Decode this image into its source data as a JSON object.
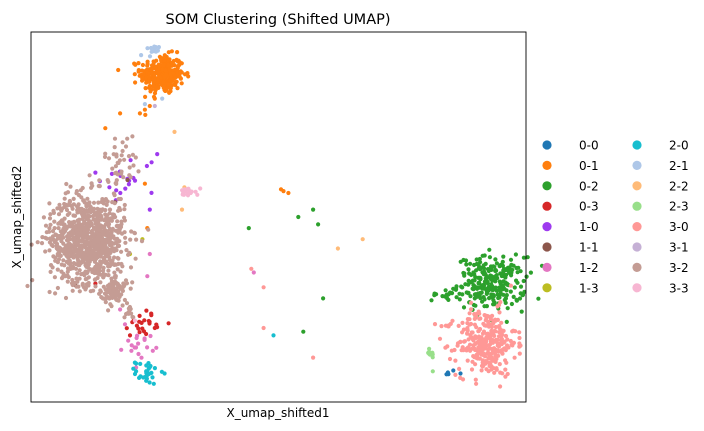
{
  "chart_data": {
    "type": "scatter",
    "title": "SOM Clustering (Shifted UMAP)",
    "xlabel": "X_umap_shifted1",
    "ylabel": "X_umap_shifted2",
    "xlim": [
      0,
      100
    ],
    "ylim": [
      0,
      100
    ],
    "grid": false,
    "ticks_shown": false,
    "legend_position": "right, outside plot, two columns",
    "series": [
      {
        "name": "0-0",
        "color": "#1f77b4",
        "clusters": [
          {
            "cx": 84,
            "cy": 8,
            "sx": 1.0,
            "sy": 0.4,
            "n": 6
          }
        ]
      },
      {
        "name": "0-1",
        "color": "#ff7f0e",
        "clusters": [
          {
            "cx": 26.5,
            "cy": 88.5,
            "sx": 2.2,
            "sy": 2.6,
            "n": 300
          }
        ],
        "points": [
          [
            25,
            82
          ],
          [
            24,
            80
          ],
          [
            22,
            78
          ],
          [
            23,
            79
          ],
          [
            18,
            78
          ],
          [
            15,
            74
          ],
          [
            51,
            57
          ],
          [
            52,
            56.5
          ],
          [
            50.5,
            57.5
          ],
          [
            23,
            59
          ],
          [
            23.5,
            47
          ]
        ]
      },
      {
        "name": "0-2",
        "color": "#2ca02c",
        "clusters": [
          {
            "cx": 93,
            "cy": 32,
            "sx": 3.4,
            "sy": 3.6,
            "n": 260
          },
          {
            "cx": 83,
            "cy": 29,
            "sx": 1.0,
            "sy": 0.8,
            "n": 14
          }
        ],
        "points": [
          [
            44,
            47
          ],
          [
            54,
            50
          ],
          [
            57,
            52
          ],
          [
            58,
            48
          ],
          [
            59,
            28
          ],
          [
            55,
            19
          ]
        ]
      },
      {
        "name": "0-3",
        "color": "#d62728",
        "clusters": [
          {
            "cx": 23,
            "cy": 21.5,
            "sx": 1.6,
            "sy": 1.6,
            "n": 22
          }
        ],
        "points": [
          [
            11,
            35
          ],
          [
            13,
            32
          ],
          [
            20,
            24
          ],
          [
            25,
            20
          ],
          [
            20,
            18
          ]
        ]
      },
      {
        "name": "1-0",
        "color": "#9e3aef",
        "clusters": [
          {
            "cx": 20,
            "cy": 60,
            "sx": 3.0,
            "sy": 3.5,
            "n": 18
          }
        ],
        "points": [
          [
            25.5,
            67
          ],
          [
            13,
            62
          ],
          [
            24,
            52
          ]
        ]
      },
      {
        "name": "1-1",
        "color": "#8c564b",
        "points": [
          [
            9,
            31.5
          ],
          [
            19.5,
            60
          ],
          [
            17,
            54
          ]
        ]
      },
      {
        "name": "1-2",
        "color": "#e377c2",
        "clusters": [
          {
            "cx": 22,
            "cy": 15.5,
            "sx": 1.5,
            "sy": 1.6,
            "n": 18
          }
        ],
        "points": [
          [
            24,
            40
          ],
          [
            23.5,
            34
          ],
          [
            18,
            25
          ],
          [
            19,
            21
          ],
          [
            45,
            35
          ]
        ]
      },
      {
        "name": "1-3",
        "color": "#bcbd22",
        "points": [
          [
            22.5,
            44
          ],
          [
            20,
            40
          ]
        ]
      },
      {
        "name": "2-0",
        "color": "#17becf",
        "clusters": [
          {
            "cx": 23.5,
            "cy": 8,
            "sx": 1.2,
            "sy": 1.6,
            "n": 30
          }
        ],
        "points": [
          [
            49,
            18
          ]
        ]
      },
      {
        "name": "2-1",
        "color": "#aec7e8",
        "clusters": [
          {
            "cx": 24,
            "cy": 94.5,
            "sx": 0.9,
            "sy": 0.9,
            "n": 12
          }
        ],
        "points": [
          [
            23,
            80.5
          ],
          [
            26.5,
            82
          ]
        ]
      },
      {
        "name": "2-2",
        "color": "#ffbb78",
        "points": [
          [
            29,
            73
          ],
          [
            31,
            58
          ],
          [
            30.5,
            52
          ],
          [
            62,
            41.5
          ],
          [
            67,
            44
          ]
        ]
      },
      {
        "name": "2-3",
        "color": "#98df8a",
        "clusters": [
          {
            "cx": 80.5,
            "cy": 12.5,
            "sx": 0.5,
            "sy": 1.4,
            "n": 10
          }
        ]
      },
      {
        "name": "3-0",
        "color": "#ff9896",
        "clusters": [
          {
            "cx": 92,
            "cy": 16,
            "sx": 3.0,
            "sy": 4.5,
            "n": 300
          },
          {
            "cx": 83.5,
            "cy": 20.5,
            "sx": 0.8,
            "sy": 0.5,
            "n": 5
          }
        ],
        "points": [
          [
            44.5,
            36
          ],
          [
            47,
            31
          ],
          [
            47,
            20
          ],
          [
            57,
            12
          ]
        ]
      },
      {
        "name": "3-1",
        "color": "#c5b0d5",
        "points": [
          [
            25,
            80
          ]
        ]
      },
      {
        "name": "3-2",
        "color": "#c49c94",
        "clusters": [
          {
            "cx": 11.5,
            "cy": 44,
            "sx": 3.8,
            "sy": 6.0,
            "n": 900
          },
          {
            "cx": 17,
            "cy": 30,
            "sx": 1.2,
            "sy": 2.0,
            "n": 80
          },
          {
            "cx": 18,
            "cy": 65,
            "sx": 1.6,
            "sy": 3.5,
            "n": 40
          },
          {
            "cx": 20,
            "cy": 24,
            "sx": 0.6,
            "sy": 1.0,
            "n": 10
          }
        ]
      },
      {
        "name": "3-3",
        "color": "#f7b6d2",
        "clusters": [
          {
            "cx": 32,
            "cy": 57,
            "sx": 0.9,
            "sy": 0.6,
            "n": 16
          }
        ],
        "points": [
          [
            21,
            22
          ]
        ]
      }
    ]
  }
}
